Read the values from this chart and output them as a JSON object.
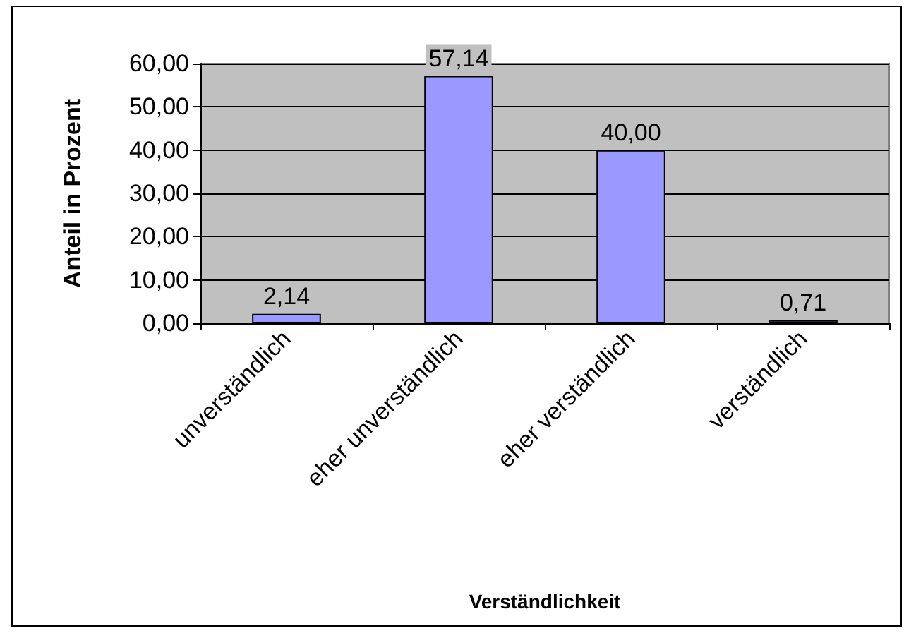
{
  "chart_data": {
    "type": "bar",
    "xlabel": "Verständlichkeit",
    "ylabel": "Anteil in Prozent",
    "categories": [
      "unverständlich",
      "eher unverständlich",
      "eher verständlich",
      "verständlich"
    ],
    "values": [
      2.14,
      57.14,
      40.0,
      0.71
    ],
    "color": "#9999ff",
    "value_labels": [
      "2,14",
      "57,14",
      "40,00",
      "0,71"
    ],
    "ylim": [
      0,
      60
    ],
    "yticks": [
      {
        "value": 0,
        "label": "0,00"
      },
      {
        "value": 10,
        "label": "10,00"
      },
      {
        "value": 20,
        "label": "20,00"
      },
      {
        "value": 30,
        "label": "30,00"
      },
      {
        "value": 40,
        "label": "40,00"
      },
      {
        "value": 50,
        "label": "50,00"
      },
      {
        "value": 60,
        "label": "60,00"
      }
    ],
    "grid": "y"
  }
}
